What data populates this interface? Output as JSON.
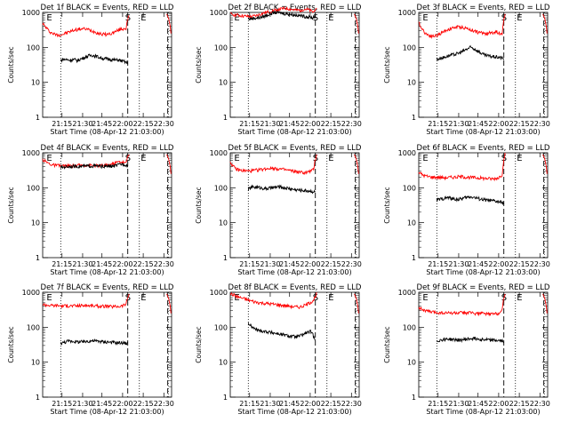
{
  "chart_data": [
    {
      "type": "line",
      "title": "Det 1f BLACK = Events, RED = LLD",
      "ylabel": "Counts/sec",
      "xlabel": "Start Time (08-Apr-12 21:03:00)",
      "yscale": "log",
      "ylim": [
        1,
        1000
      ],
      "xlim": [
        0,
        100
      ],
      "xticks": [
        "21:15",
        "21:30",
        "21:45",
        "22:00",
        "22:15",
        "22:30"
      ],
      "yticks": [
        "1",
        "10",
        "100",
        "1000"
      ],
      "markers": [
        "S",
        "E"
      ],
      "series": [
        {
          "color": "#ff0000",
          "values": [
            480,
            380,
            300,
            260,
            240,
            225,
            230,
            240,
            260,
            280,
            300,
            320,
            330,
            340,
            340,
            330,
            310,
            290,
            270,
            250,
            240,
            235,
            240,
            250,
            270,
            300,
            330,
            340,
            360,
            800
          ]
        },
        {
          "color": "#000000",
          "values": [
            42,
            46,
            45,
            44,
            43,
            45,
            44,
            42,
            46,
            48,
            52,
            55,
            58,
            60,
            58,
            55,
            52,
            50,
            48,
            47,
            46,
            45,
            44,
            43,
            44,
            42,
            40,
            38,
            35
          ]
        }
      ]
    },
    {
      "type": "line",
      "title": "Det 2f BLACK = Events, RED = LLD",
      "ylabel": "Counts/sec",
      "xlabel": "Start Time (08-Apr-12 21:03:00)",
      "yscale": "log",
      "ylim": [
        1,
        1000
      ],
      "xlim": [
        0,
        100
      ],
      "xticks": [
        "21:15",
        "21:30",
        "21:45",
        "22:00",
        "22:15",
        "22:30"
      ],
      "yticks": [
        "1",
        "10",
        "100",
        "1000"
      ],
      "markers": [
        "S",
        "E"
      ],
      "series": [
        {
          "color": "#ff0000",
          "values": [
            900,
            880,
            850,
            820,
            800,
            780,
            760,
            760,
            780,
            820,
            880,
            940,
            1000,
            1050,
            1100,
            1150,
            1200,
            1250,
            1280,
            1300,
            1250,
            1200,
            1150,
            1150,
            1200,
            1250,
            1200,
            1100,
            1000,
            1500
          ]
        },
        {
          "color": "#000000",
          "values": [
            650,
            660,
            680,
            690,
            700,
            720,
            750,
            800,
            850,
            900,
            950,
            1000,
            1000,
            980,
            960,
            940,
            920,
            900,
            880,
            860,
            840,
            820,
            800,
            780,
            760,
            740,
            720,
            700,
            800
          ]
        }
      ]
    },
    {
      "type": "line",
      "title": "Det 3f BLACK = Events, RED = LLD",
      "ylabel": "Counts/sec",
      "xlabel": "Start Time (08-Apr-12 21:03:00)",
      "yscale": "log",
      "ylim": [
        1,
        1000
      ],
      "xlim": [
        0,
        100
      ],
      "xticks": [
        "21:15",
        "21:30",
        "21:45",
        "22:00",
        "22:15",
        "22:30"
      ],
      "yticks": [
        "1",
        "10",
        "100",
        "1000"
      ],
      "markers": [
        "S",
        "E"
      ],
      "series": [
        {
          "color": "#ff0000",
          "values": [
            500,
            350,
            270,
            230,
            215,
            210,
            220,
            240,
            270,
            300,
            330,
            350,
            370,
            380,
            380,
            370,
            350,
            330,
            310,
            290,
            270,
            260,
            255,
            250,
            260,
            270,
            280,
            260,
            240,
            900
          ]
        },
        {
          "color": "#000000",
          "values": [
            45,
            48,
            50,
            52,
            55,
            58,
            60,
            62,
            65,
            68,
            72,
            78,
            85,
            92,
            100,
            95,
            88,
            80,
            72,
            65,
            60,
            58,
            56,
            55,
            54,
            53,
            52,
            50,
            48
          ]
        }
      ]
    },
    {
      "type": "line",
      "title": "Det 4f BLACK = Events, RED = LLD",
      "ylabel": "Counts/sec",
      "xlabel": "Start Time (08-Apr-12 21:03:00)",
      "yscale": "log",
      "ylim": [
        1,
        1000
      ],
      "xlim": [
        0,
        100
      ],
      "xticks": [
        "21:15",
        "21:30",
        "21:45",
        "22:00",
        "22:15",
        "22:30"
      ],
      "yticks": [
        "1",
        "10",
        "100",
        "1000"
      ],
      "markers": [
        "S",
        "E"
      ],
      "series": [
        {
          "color": "#ff0000",
          "values": [
            650,
            560,
            500,
            460,
            440,
            430,
            425,
            420,
            420,
            420,
            425,
            430,
            435,
            440,
            445,
            445,
            440,
            435,
            430,
            430,
            435,
            440,
            450,
            470,
            500,
            540,
            560,
            540,
            500,
            1000
          ]
        },
        {
          "color": "#000000",
          "values": [
            380,
            390,
            400,
            405,
            410,
            410,
            410,
            410,
            410,
            412,
            415,
            418,
            420,
            420,
            420,
            418,
            415,
            412,
            410,
            410,
            412,
            415,
            420,
            430,
            450,
            470,
            480,
            460,
            430
          ]
        }
      ]
    },
    {
      "type": "line",
      "title": "Det 5f BLACK = Events, RED = LLD",
      "ylabel": "Counts/sec",
      "xlabel": "Start Time (08-Apr-12 21:03:00)",
      "yscale": "log",
      "ylim": [
        1,
        1000
      ],
      "xlim": [
        0,
        100
      ],
      "xticks": [
        "21:15",
        "21:30",
        "21:45",
        "22:00",
        "22:15",
        "22:30"
      ],
      "yticks": [
        "1",
        "10",
        "100",
        "1000"
      ],
      "markers": [
        "S",
        "E"
      ],
      "series": [
        {
          "color": "#ff0000",
          "values": [
            550,
            400,
            340,
            320,
            310,
            305,
            300,
            305,
            310,
            320,
            330,
            340,
            350,
            360,
            365,
            360,
            350,
            340,
            330,
            320,
            310,
            300,
            290,
            280,
            275,
            270,
            280,
            300,
            330,
            900
          ]
        },
        {
          "color": "#000000",
          "values": [
            90,
            100,
            105,
            105,
            102,
            100,
            98,
            95,
            95,
            98,
            100,
            102,
            105,
            105,
            103,
            100,
            98,
            95,
            92,
            90,
            88,
            86,
            85,
            84,
            83,
            82,
            80,
            78,
            75
          ]
        }
      ]
    },
    {
      "type": "line",
      "title": "Det 6f BLACK = Events, RED = LLD",
      "ylabel": "Counts/sec",
      "xlabel": "Start Time (08-Apr-12 21:03:00)",
      "yscale": "log",
      "ylim": [
        1,
        1000
      ],
      "xlim": [
        0,
        100
      ],
      "xticks": [
        "21:15",
        "21:30",
        "21:45",
        "22:00",
        "22:15",
        "22:30"
      ],
      "yticks": [
        "1",
        "10",
        "100",
        "1000"
      ],
      "markers": [
        "S",
        "E"
      ],
      "series": [
        {
          "color": "#ff0000",
          "values": [
            280,
            240,
            220,
            210,
            205,
            200,
            200,
            200,
            195,
            195,
            195,
            200,
            200,
            205,
            205,
            205,
            200,
            200,
            195,
            195,
            190,
            190,
            185,
            185,
            180,
            180,
            185,
            200,
            240,
            900
          ]
        },
        {
          "color": "#000000",
          "values": [
            45,
            46,
            48,
            50,
            52,
            52,
            50,
            48,
            47,
            46,
            48,
            50,
            52,
            54,
            55,
            55,
            52,
            50,
            48,
            46,
            45,
            44,
            43,
            42,
            42,
            40,
            40,
            38,
            36
          ]
        }
      ]
    },
    {
      "type": "line",
      "title": "Det 7f BLACK = Events, RED = LLD",
      "ylabel": "Counts/sec",
      "xlabel": "Start Time (08-Apr-12 21:03:00)",
      "yscale": "log",
      "ylim": [
        1,
        1000
      ],
      "xlim": [
        0,
        100
      ],
      "xticks": [
        "21:15",
        "21:30",
        "21:45",
        "22:00",
        "22:15",
        "22:30"
      ],
      "yticks": [
        "1",
        "10",
        "100",
        "1000"
      ],
      "markers": [
        "S",
        "E"
      ],
      "series": [
        {
          "color": "#ff0000",
          "values": [
            450,
            440,
            430,
            420,
            420,
            420,
            415,
            410,
            410,
            410,
            410,
            410,
            415,
            420,
            420,
            420,
            415,
            410,
            405,
            400,
            400,
            400,
            395,
            390,
            390,
            395,
            400,
            420,
            460,
            900
          ]
        },
        {
          "color": "#000000",
          "values": [
            35,
            36,
            38,
            40,
            40,
            40,
            39,
            38,
            38,
            38,
            38,
            40,
            40,
            41,
            41,
            40,
            40,
            39,
            38,
            38,
            38,
            37,
            37,
            36,
            36,
            36,
            36,
            35,
            34
          ]
        }
      ]
    },
    {
      "type": "line",
      "title": "Det 8f BLACK = Events, RED = LLD",
      "ylabel": "Counts/sec",
      "xlabel": "Start Time (08-Apr-12 21:03:00)",
      "yscale": "log",
      "ylim": [
        1,
        1000
      ],
      "xlim": [
        0,
        100
      ],
      "xticks": [
        "21:15",
        "21:30",
        "21:45",
        "22:00",
        "22:15",
        "22:30"
      ],
      "yticks": [
        "1",
        "10",
        "100",
        "1000"
      ],
      "markers": [
        "S",
        "E"
      ],
      "series": [
        {
          "color": "#ff0000",
          "values": [
            900,
            850,
            780,
            720,
            680,
            640,
            600,
            570,
            540,
            520,
            500,
            490,
            480,
            470,
            460,
            450,
            440,
            430,
            420,
            410,
            400,
            390,
            380,
            380,
            390,
            420,
            460,
            520,
            600,
            900
          ]
        },
        {
          "color": "#000000",
          "values": [
            130,
            110,
            95,
            88,
            82,
            80,
            78,
            76,
            74,
            72,
            70,
            68,
            66,
            64,
            62,
            60,
            58,
            56,
            55,
            54,
            53,
            55,
            58,
            62,
            68,
            72,
            75,
            60,
            45
          ]
        }
      ]
    },
    {
      "type": "line",
      "title": "Det 9f BLACK = Events, RED = LLD",
      "ylabel": "Counts/sec",
      "xlabel": "Start Time (08-Apr-12 21:03:00)",
      "yscale": "log",
      "ylim": [
        1,
        1000
      ],
      "xlim": [
        0,
        100
      ],
      "xticks": [
        "21:15",
        "21:30",
        "21:45",
        "22:00",
        "22:15",
        "22:30"
      ],
      "yticks": [
        "1",
        "10",
        "100",
        "1000"
      ],
      "markers": [
        "S",
        "E"
      ],
      "series": [
        {
          "color": "#ff0000",
          "values": [
            380,
            330,
            300,
            285,
            275,
            270,
            265,
            260,
            258,
            256,
            255,
            255,
            255,
            256,
            258,
            260,
            260,
            258,
            255,
            252,
            250,
            248,
            245,
            242,
            240,
            240,
            245,
            260,
            300,
            900
          ]
        },
        {
          "color": "#000000",
          "values": [
            40,
            42,
            44,
            45,
            46,
            46,
            45,
            44,
            44,
            43,
            43,
            44,
            45,
            46,
            47,
            48,
            48,
            47,
            46,
            45,
            44,
            44,
            43,
            43,
            42,
            42,
            41,
            40,
            39
          ]
        }
      ]
    }
  ]
}
